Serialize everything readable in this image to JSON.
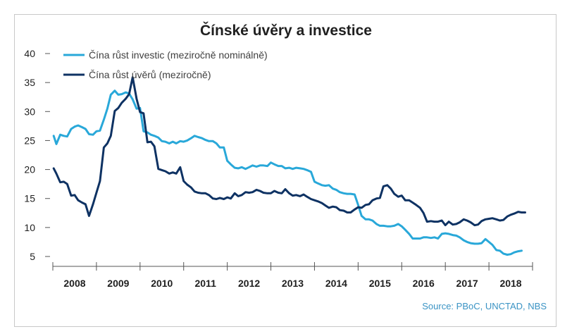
{
  "chart_data": {
    "type": "line",
    "title": "Čínské úvěry a investice",
    "source": "Source: PBoC, UNCTAD, NBS",
    "ylim": [
      5,
      40
    ],
    "y_ticks": [
      40,
      35,
      30,
      25,
      20,
      15,
      10,
      5
    ],
    "x_range": [
      2008,
      2019
    ],
    "x_labels": [
      "2008",
      "2009",
      "2010",
      "2011",
      "2012",
      "2013",
      "2014",
      "2015",
      "2016",
      "2017",
      "2018"
    ],
    "grid": false,
    "legend_position": "top-left",
    "series": [
      {
        "name": "Čína růst investic (meziročně nominálně)",
        "color": "#29a8d9",
        "points": [
          [
            2008.02,
            25.8
          ],
          [
            2008.08,
            24.4
          ],
          [
            2008.17,
            26.0
          ],
          [
            2008.25,
            25.8
          ],
          [
            2008.33,
            25.7
          ],
          [
            2008.42,
            27.0
          ],
          [
            2008.5,
            27.4
          ],
          [
            2008.58,
            27.6
          ],
          [
            2008.67,
            27.3
          ],
          [
            2008.75,
            27.0
          ],
          [
            2008.83,
            26.1
          ],
          [
            2008.92,
            26.0
          ],
          [
            2009.0,
            26.6
          ],
          [
            2009.08,
            26.7
          ],
          [
            2009.17,
            28.6
          ],
          [
            2009.25,
            30.5
          ],
          [
            2009.33,
            32.9
          ],
          [
            2009.42,
            33.6
          ],
          [
            2009.5,
            32.9
          ],
          [
            2009.58,
            33.0
          ],
          [
            2009.67,
            33.3
          ],
          [
            2009.75,
            33.1
          ],
          [
            2009.83,
            32.1
          ],
          [
            2009.92,
            30.5
          ],
          [
            2010.0,
            30.6
          ],
          [
            2010.08,
            26.6
          ],
          [
            2010.17,
            26.4
          ],
          [
            2010.25,
            26.0
          ],
          [
            2010.33,
            25.8
          ],
          [
            2010.42,
            25.5
          ],
          [
            2010.5,
            24.9
          ],
          [
            2010.58,
            24.8
          ],
          [
            2010.67,
            24.5
          ],
          [
            2010.75,
            24.8
          ],
          [
            2010.83,
            24.5
          ],
          [
            2010.92,
            24.9
          ],
          [
            2011.0,
            24.8
          ],
          [
            2011.08,
            25.0
          ],
          [
            2011.17,
            25.4
          ],
          [
            2011.25,
            25.8
          ],
          [
            2011.33,
            25.6
          ],
          [
            2011.42,
            25.4
          ],
          [
            2011.5,
            25.1
          ],
          [
            2011.58,
            24.9
          ],
          [
            2011.67,
            24.9
          ],
          [
            2011.75,
            24.5
          ],
          [
            2011.83,
            23.8
          ],
          [
            2011.92,
            23.8
          ],
          [
            2012.0,
            21.5
          ],
          [
            2012.08,
            20.9
          ],
          [
            2012.17,
            20.3
          ],
          [
            2012.25,
            20.2
          ],
          [
            2012.33,
            20.4
          ],
          [
            2012.42,
            20.1
          ],
          [
            2012.5,
            20.4
          ],
          [
            2012.58,
            20.7
          ],
          [
            2012.67,
            20.5
          ],
          [
            2012.75,
            20.7
          ],
          [
            2012.83,
            20.7
          ],
          [
            2012.92,
            20.6
          ],
          [
            2013.0,
            21.2
          ],
          [
            2013.08,
            20.9
          ],
          [
            2013.17,
            20.6
          ],
          [
            2013.25,
            20.6
          ],
          [
            2013.33,
            20.2
          ],
          [
            2013.42,
            20.3
          ],
          [
            2013.5,
            20.1
          ],
          [
            2013.58,
            20.3
          ],
          [
            2013.67,
            20.2
          ],
          [
            2013.75,
            20.1
          ],
          [
            2013.83,
            19.9
          ],
          [
            2013.92,
            19.6
          ],
          [
            2014.0,
            17.9
          ],
          [
            2014.08,
            17.6
          ],
          [
            2014.17,
            17.3
          ],
          [
            2014.25,
            17.2
          ],
          [
            2014.33,
            17.3
          ],
          [
            2014.42,
            16.7
          ],
          [
            2014.5,
            16.5
          ],
          [
            2014.58,
            16.1
          ],
          [
            2014.67,
            15.9
          ],
          [
            2014.75,
            15.8
          ],
          [
            2014.83,
            15.8
          ],
          [
            2014.92,
            15.7
          ],
          [
            2015.0,
            13.9
          ],
          [
            2015.08,
            12.0
          ],
          [
            2015.17,
            11.4
          ],
          [
            2015.25,
            11.4
          ],
          [
            2015.33,
            11.2
          ],
          [
            2015.42,
            10.6
          ],
          [
            2015.5,
            10.3
          ],
          [
            2015.58,
            10.3
          ],
          [
            2015.67,
            10.2
          ],
          [
            2015.75,
            10.2
          ],
          [
            2015.83,
            10.3
          ],
          [
            2015.92,
            10.6
          ],
          [
            2016.0,
            10.2
          ],
          [
            2016.08,
            9.6
          ],
          [
            2016.17,
            8.9
          ],
          [
            2016.25,
            8.1
          ],
          [
            2016.33,
            8.1
          ],
          [
            2016.42,
            8.1
          ],
          [
            2016.5,
            8.3
          ],
          [
            2016.58,
            8.3
          ],
          [
            2016.67,
            8.2
          ],
          [
            2016.75,
            8.3
          ],
          [
            2016.83,
            8.1
          ],
          [
            2016.92,
            8.9
          ],
          [
            2017.0,
            9.0
          ],
          [
            2017.08,
            8.9
          ],
          [
            2017.17,
            8.7
          ],
          [
            2017.25,
            8.6
          ],
          [
            2017.33,
            8.3
          ],
          [
            2017.42,
            7.8
          ],
          [
            2017.5,
            7.5
          ],
          [
            2017.58,
            7.3
          ],
          [
            2017.67,
            7.2
          ],
          [
            2017.75,
            7.2
          ],
          [
            2017.83,
            7.3
          ],
          [
            2017.92,
            8.0
          ],
          [
            2018.0,
            7.5
          ],
          [
            2018.08,
            7.0
          ],
          [
            2018.17,
            6.1
          ],
          [
            2018.25,
            6.0
          ],
          [
            2018.33,
            5.5
          ],
          [
            2018.42,
            5.3
          ],
          [
            2018.5,
            5.4
          ],
          [
            2018.58,
            5.7
          ],
          [
            2018.67,
            5.9
          ],
          [
            2018.75,
            6.0
          ]
        ]
      },
      {
        "name": "Čína růst úvěrů (meziročně)",
        "color": "#0e3263",
        "points": [
          [
            2008.02,
            20.2
          ],
          [
            2008.08,
            19.3
          ],
          [
            2008.17,
            17.8
          ],
          [
            2008.25,
            17.9
          ],
          [
            2008.33,
            17.5
          ],
          [
            2008.42,
            15.5
          ],
          [
            2008.5,
            15.6
          ],
          [
            2008.58,
            14.7
          ],
          [
            2008.67,
            14.3
          ],
          [
            2008.75,
            14.0
          ],
          [
            2008.83,
            12.0
          ],
          [
            2008.92,
            14.0
          ],
          [
            2009.0,
            16.0
          ],
          [
            2009.08,
            18.0
          ],
          [
            2009.17,
            23.8
          ],
          [
            2009.25,
            24.5
          ],
          [
            2009.33,
            25.8
          ],
          [
            2009.42,
            30.1
          ],
          [
            2009.5,
            30.6
          ],
          [
            2009.58,
            31.5
          ],
          [
            2009.67,
            32.2
          ],
          [
            2009.75,
            33.0
          ],
          [
            2009.83,
            35.9
          ],
          [
            2009.92,
            32.2
          ],
          [
            2010.0,
            29.9
          ],
          [
            2010.08,
            29.7
          ],
          [
            2010.17,
            24.7
          ],
          [
            2010.25,
            24.8
          ],
          [
            2010.33,
            24.0
          ],
          [
            2010.42,
            20.1
          ],
          [
            2010.5,
            19.9
          ],
          [
            2010.58,
            19.7
          ],
          [
            2010.67,
            19.3
          ],
          [
            2010.75,
            19.5
          ],
          [
            2010.83,
            19.3
          ],
          [
            2010.92,
            20.4
          ],
          [
            2011.0,
            18.0
          ],
          [
            2011.08,
            17.4
          ],
          [
            2011.17,
            16.9
          ],
          [
            2011.25,
            16.2
          ],
          [
            2011.33,
            16.0
          ],
          [
            2011.42,
            15.9
          ],
          [
            2011.5,
            15.9
          ],
          [
            2011.58,
            15.6
          ],
          [
            2011.67,
            15.0
          ],
          [
            2011.75,
            14.9
          ],
          [
            2011.83,
            15.1
          ],
          [
            2011.92,
            14.9
          ],
          [
            2012.0,
            15.2
          ],
          [
            2012.08,
            15.0
          ],
          [
            2012.17,
            15.9
          ],
          [
            2012.25,
            15.4
          ],
          [
            2012.33,
            15.6
          ],
          [
            2012.42,
            16.1
          ],
          [
            2012.5,
            16.0
          ],
          [
            2012.58,
            16.1
          ],
          [
            2012.67,
            16.5
          ],
          [
            2012.75,
            16.3
          ],
          [
            2012.83,
            16.0
          ],
          [
            2012.92,
            15.9
          ],
          [
            2013.0,
            15.9
          ],
          [
            2013.08,
            16.3
          ],
          [
            2013.17,
            16.0
          ],
          [
            2013.25,
            15.9
          ],
          [
            2013.33,
            16.6
          ],
          [
            2013.42,
            15.9
          ],
          [
            2013.5,
            15.5
          ],
          [
            2013.58,
            15.6
          ],
          [
            2013.67,
            15.4
          ],
          [
            2013.75,
            15.7
          ],
          [
            2013.83,
            15.3
          ],
          [
            2013.92,
            14.9
          ],
          [
            2014.0,
            14.7
          ],
          [
            2014.08,
            14.5
          ],
          [
            2014.17,
            14.2
          ],
          [
            2014.25,
            13.8
          ],
          [
            2014.33,
            13.4
          ],
          [
            2014.42,
            13.6
          ],
          [
            2014.5,
            13.5
          ],
          [
            2014.58,
            13.0
          ],
          [
            2014.67,
            12.9
          ],
          [
            2014.75,
            12.6
          ],
          [
            2014.83,
            12.6
          ],
          [
            2014.92,
            13.1
          ],
          [
            2015.0,
            13.5
          ],
          [
            2015.08,
            13.4
          ],
          [
            2015.17,
            13.9
          ],
          [
            2015.25,
            14.0
          ],
          [
            2015.33,
            14.7
          ],
          [
            2015.42,
            15.0
          ],
          [
            2015.5,
            15.1
          ],
          [
            2015.58,
            17.1
          ],
          [
            2015.67,
            17.3
          ],
          [
            2015.75,
            16.7
          ],
          [
            2015.83,
            15.8
          ],
          [
            2015.92,
            15.3
          ],
          [
            2016.0,
            15.5
          ],
          [
            2016.08,
            14.7
          ],
          [
            2016.17,
            14.7
          ],
          [
            2016.25,
            14.3
          ],
          [
            2016.33,
            13.9
          ],
          [
            2016.42,
            13.4
          ],
          [
            2016.5,
            12.5
          ],
          [
            2016.58,
            11.0
          ],
          [
            2016.67,
            11.1
          ],
          [
            2016.75,
            11.0
          ],
          [
            2016.83,
            11.0
          ],
          [
            2016.92,
            11.2
          ],
          [
            2017.0,
            10.4
          ],
          [
            2017.08,
            11.0
          ],
          [
            2017.17,
            10.5
          ],
          [
            2017.25,
            10.6
          ],
          [
            2017.33,
            10.9
          ],
          [
            2017.42,
            11.4
          ],
          [
            2017.5,
            11.2
          ],
          [
            2017.58,
            10.9
          ],
          [
            2017.67,
            10.4
          ],
          [
            2017.75,
            10.5
          ],
          [
            2017.83,
            11.1
          ],
          [
            2017.92,
            11.4
          ],
          [
            2018.0,
            11.5
          ],
          [
            2018.08,
            11.6
          ],
          [
            2018.17,
            11.4
          ],
          [
            2018.25,
            11.2
          ],
          [
            2018.33,
            11.3
          ],
          [
            2018.42,
            11.9
          ],
          [
            2018.5,
            12.2
          ],
          [
            2018.58,
            12.4
          ],
          [
            2018.67,
            12.7
          ],
          [
            2018.75,
            12.6
          ],
          [
            2018.83,
            12.6
          ]
        ]
      }
    ]
  }
}
